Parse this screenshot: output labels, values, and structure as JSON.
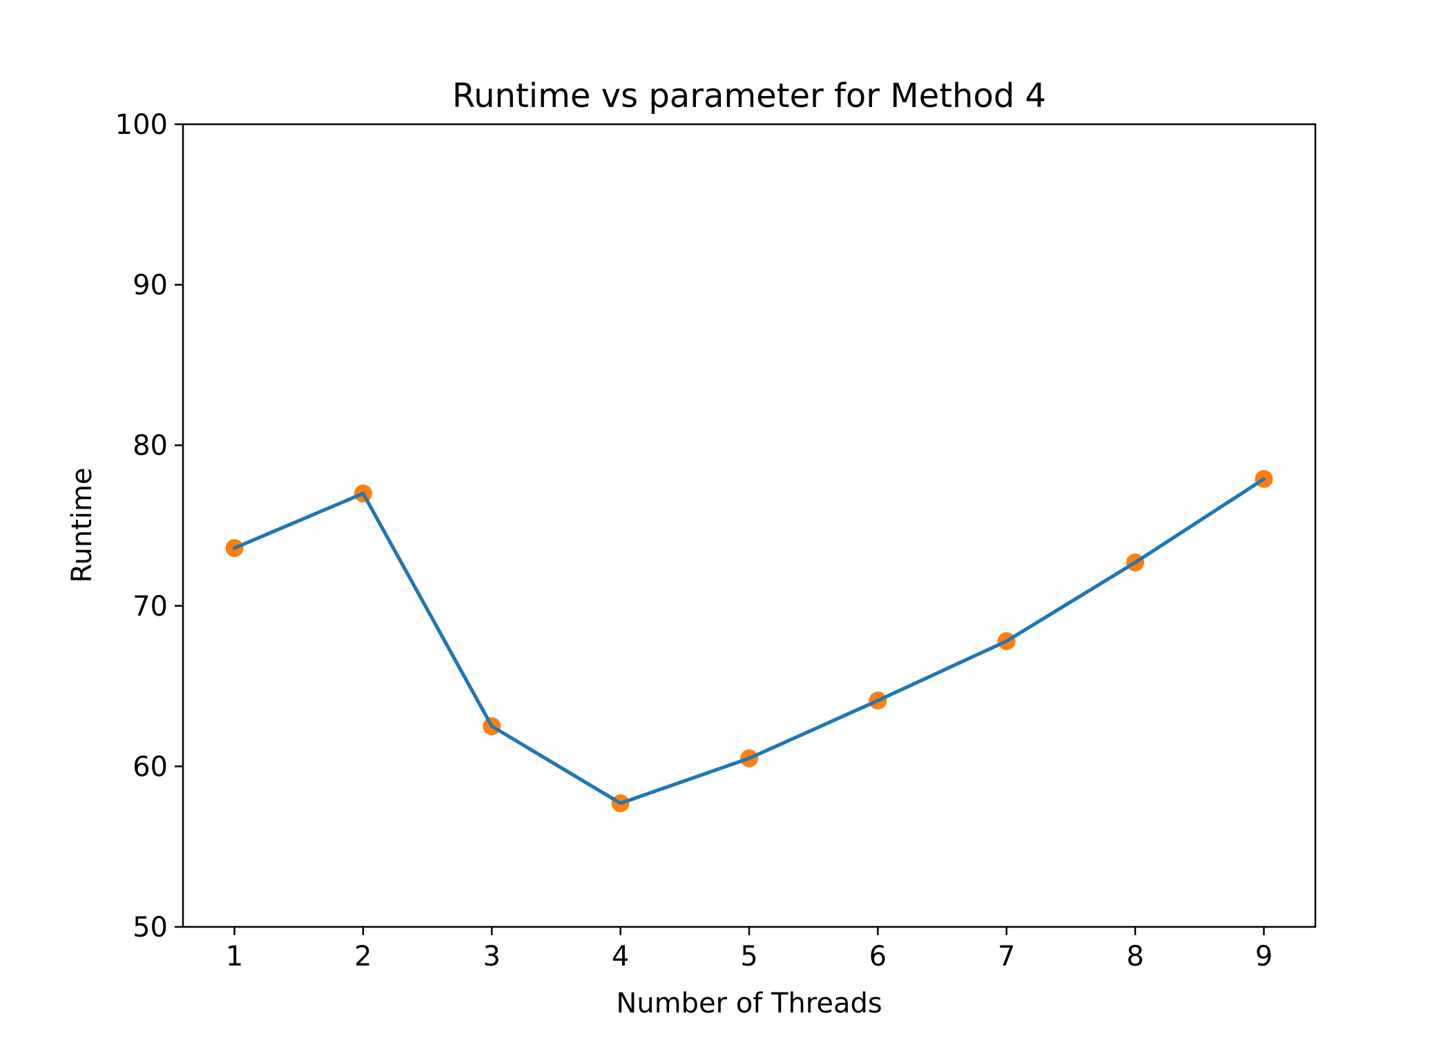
{
  "chart_data": {
    "type": "line",
    "title": "Runtime vs parameter for Method 4",
    "xlabel": "Number of Threads",
    "ylabel": "Runtime",
    "x": [
      1,
      2,
      3,
      4,
      5,
      6,
      7,
      8,
      9
    ],
    "series": [
      {
        "values": [
          73.6,
          77.0,
          62.5,
          57.7,
          60.5,
          64.1,
          67.8,
          72.7,
          77.9
        ]
      }
    ],
    "xlim": [
      0.6,
      9.4
    ],
    "ylim": [
      50,
      100
    ],
    "xticks": [
      "1",
      "2",
      "3",
      "4",
      "5",
      "6",
      "7",
      "8",
      "9"
    ],
    "yticks": [
      "50",
      "60",
      "70",
      "80",
      "90",
      "100"
    ],
    "grid": false,
    "legend": false,
    "line_color": "#1f77b4",
    "marker_color": "#ff7f0e"
  }
}
